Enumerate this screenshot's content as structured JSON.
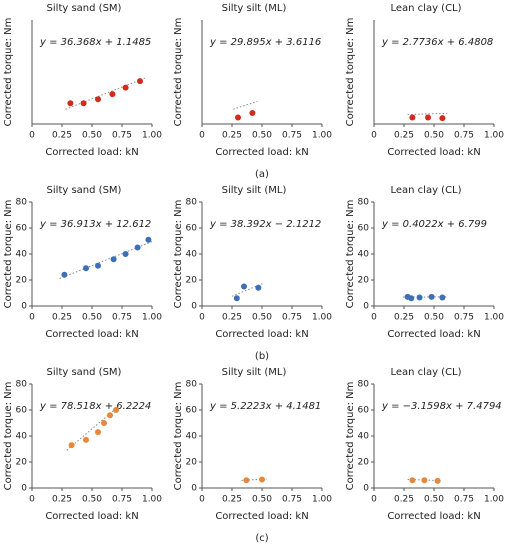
{
  "chart_data": [
    {
      "type": "scatter",
      "title": "Silty sand (SM)",
      "equation": "y = 36.368x + 1.1485",
      "x_label": "Corrected load: kN",
      "y_label": "Corrected torque: Nm",
      "color": "#d42a1c",
      "x": [
        0.32,
        0.43,
        0.55,
        0.67,
        0.78,
        0.9
      ],
      "values": [
        16,
        16,
        19,
        23,
        28,
        33
      ],
      "fit": {
        "slope": 36.368,
        "intercept": 1.1485
      },
      "xlim": [
        0,
        1
      ],
      "xticks": [
        0,
        0.25,
        {
          "value": 0.5,
          "label": "0.50"
        },
        0.75,
        {
          "value": 1,
          "label": "1.00"
        }
      ],
      "ylim": [
        0,
        80
      ]
    },
    {
      "type": "scatter",
      "title": "Silty silt (ML)",
      "equation": "y = 29.895x + 3.6116",
      "x_label": "Corrected load: kN",
      "y_label": "Corrected torque: Nm",
      "color": "#d42a1c",
      "x": [
        0.3,
        0.42
      ],
      "values": [
        5,
        8.5
      ],
      "fit": {
        "slope": 29.895,
        "intercept": 3.6116
      },
      "xlim": [
        0,
        1
      ],
      "xticks": [
        0,
        0.25,
        {
          "value": 0.5,
          "label": "0.50"
        },
        0.75,
        {
          "value": 1,
          "label": "1.00"
        }
      ],
      "ylim": [
        0,
        80
      ]
    },
    {
      "type": "scatter",
      "title": "Lean clay (CL)",
      "equation": "y = 2.7736x + 6.4808",
      "x_label": "Corrected load: kN",
      "y_label": "Corrected torque: Nm",
      "color": "#d42a1c",
      "x": [
        0.32,
        0.45,
        0.57
      ],
      "values": [
        5,
        5,
        4.5
      ],
      "fit": {
        "slope": 2.7736,
        "intercept": 6.4808
      },
      "xlim": [
        0,
        1
      ],
      "xticks": [
        0,
        0.25,
        {
          "value": 0.5,
          "label": "0.50"
        },
        0.75,
        {
          "value": 1,
          "label": "1.00"
        }
      ],
      "ylim": [
        0,
        80
      ]
    },
    {
      "type": "scatter",
      "title": "Silty sand (SM)",
      "equation": "y = 36.913x + 12.612",
      "x_label": "Corrected load: kN",
      "y_label": "Corrected torque: Nm",
      "color": "#3d6fb6",
      "x": [
        0.27,
        0.45,
        0.55,
        0.68,
        0.78,
        0.88,
        0.97
      ],
      "values": [
        24,
        29,
        31,
        36,
        40,
        45,
        51
      ],
      "fit": {
        "slope": 36.913,
        "intercept": 12.612
      },
      "xlim": [
        0,
        1
      ],
      "xticks": [
        0,
        0.25,
        {
          "value": 0.5,
          "label": "0.50"
        },
        0.75,
        {
          "value": 1,
          "label": "1.00"
        }
      ],
      "ylim": [
        0,
        80
      ],
      "yticks": [
        0,
        20,
        40,
        60,
        80
      ]
    },
    {
      "type": "scatter",
      "title": "Silty silt (ML)",
      "equation": "y = 38.392x − 2.1212",
      "x_label": "Corrected load: kN",
      "y_label": "Corrected torque: Nm",
      "color": "#3d6fb6",
      "x": [
        0.29,
        0.35,
        0.47
      ],
      "values": [
        6,
        15,
        14
      ],
      "fit": {
        "slope": 38.392,
        "intercept": -2.1212
      },
      "xlim": [
        0,
        1
      ],
      "xticks": [
        0,
        0.25,
        {
          "value": 0.5,
          "label": "0.50"
        },
        0.75,
        {
          "value": 1,
          "label": "1.00"
        }
      ],
      "ylim": [
        0,
        80
      ],
      "yticks": [
        0,
        20,
        40,
        60,
        80
      ]
    },
    {
      "type": "scatter",
      "title": "Lean clay (CL)",
      "equation": "y = 0.4022x + 6.799",
      "x_label": "Corrected load: kN",
      "y_label": "Corrected torque: Nm",
      "color": "#3d6fb6",
      "x": [
        0.28,
        0.31,
        0.38,
        0.48,
        0.57
      ],
      "values": [
        7,
        6,
        6.5,
        7,
        6.5
      ],
      "fit": {
        "slope": 0.4022,
        "intercept": 6.799
      },
      "xlim": [
        0,
        1
      ],
      "xticks": [
        0,
        0.25,
        {
          "value": 0.5,
          "label": "0.50"
        },
        0.75,
        {
          "value": 1,
          "label": "1.00"
        }
      ],
      "ylim": [
        0,
        80
      ],
      "yticks": [
        0,
        20,
        40,
        60,
        80
      ]
    },
    {
      "type": "scatter",
      "title": "Silty sand (SM)",
      "equation": "y = 78.518x + 6.2224",
      "x_label": "Corrected load: kN",
      "y_label": "Corrected torque: Nm",
      "color": "#e8873a",
      "x": [
        0.33,
        0.45,
        0.55,
        0.6,
        0.65,
        0.7
      ],
      "values": [
        33,
        37,
        43,
        50,
        56,
        60
      ],
      "fit": {
        "slope": 78.518,
        "intercept": 6.2224
      },
      "xlim": [
        0,
        1
      ],
      "xticks": [
        0,
        0.25,
        {
          "value": 0.5,
          "label": "0.50"
        },
        0.75,
        {
          "value": 1,
          "label": "1.00"
        }
      ],
      "ylim": [
        0,
        80
      ],
      "yticks": [
        0,
        20,
        40,
        60,
        80
      ]
    },
    {
      "type": "scatter",
      "title": "Silty silt (ML)",
      "equation": "y = 5.2223x + 4.1481",
      "x_label": "Corrected load: kN",
      "y_label": "Corrected torque: Nm",
      "color": "#e8873a",
      "x": [
        0.37,
        0.5
      ],
      "values": [
        6,
        6.5
      ],
      "fit": {
        "slope": 5.2223,
        "intercept": 4.1481
      },
      "xlim": [
        0,
        1
      ],
      "xticks": [
        0,
        0.25,
        {
          "value": 0.5,
          "label": "0.50"
        },
        0.75,
        {
          "value": 1,
          "label": "1.00"
        }
      ],
      "ylim": [
        0,
        80
      ],
      "yticks": [
        0,
        20,
        40,
        60,
        80
      ]
    },
    {
      "type": "scatter",
      "title": "Lean clay (CL)",
      "equation": "y = −3.1598x + 7.4794",
      "x_label": "Corrected load: kN",
      "y_label": "Corrected torque: Nm",
      "color": "#e8873a",
      "x": [
        0.32,
        0.42,
        0.53
      ],
      "values": [
        6,
        6,
        5.5
      ],
      "fit": {
        "slope": -3.1598,
        "intercept": 7.4794
      },
      "xlim": [
        0,
        1
      ],
      "xticks": [
        0,
        0.25,
        {
          "value": 0.5,
          "label": "0.50"
        },
        0.75,
        {
          "value": 1,
          "label": "1.00"
        }
      ],
      "ylim": [
        0,
        80
      ],
      "yticks": [
        0,
        20,
        40,
        60,
        80
      ]
    }
  ],
  "panel_labels": [
    "(a)",
    "(b)",
    "(c)"
  ]
}
